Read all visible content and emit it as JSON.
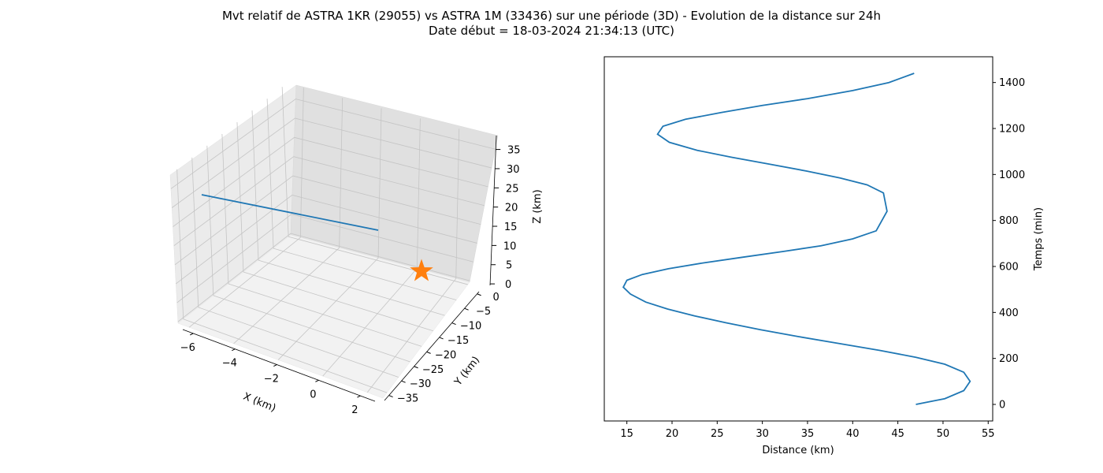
{
  "figure": {
    "title_line1": "Mvt relatif de ASTRA 1KR (29055) vs ASTRA 1M (33436) sur une période (3D) - Evolution de la distance sur 24h",
    "title_line2": "Date début = 18-03-2024 21:34:13 (UTC)"
  },
  "chart_data": [
    {
      "type": "line3d",
      "xlabel": "X (km)",
      "ylabel": "Y (km)",
      "zlabel": "Z (km)",
      "x_ticks": [
        -6,
        -4,
        -2,
        0,
        2
      ],
      "y_ticks": [
        0,
        -5,
        -10,
        -15,
        -20,
        -25,
        -30,
        -35
      ],
      "z_ticks": [
        0,
        5,
        10,
        15,
        20,
        25,
        30,
        35
      ],
      "series": [
        {
          "style": "line",
          "color": "#1f77b4"
        },
        {
          "style": "star-marker",
          "color": "#ff7f0e"
        }
      ]
    },
    {
      "type": "line",
      "xlabel": "Distance (km)",
      "ylabel": "Temps (min)",
      "xlim": [
        12.5,
        55.5
      ],
      "ylim": [
        -72,
        1512
      ],
      "x_ticks": [
        15,
        20,
        25,
        30,
        35,
        40,
        45,
        50,
        55
      ],
      "y_ticks": [
        0,
        200,
        400,
        600,
        800,
        1000,
        1200,
        1400
      ],
      "yaxis_side": "right",
      "color": "#1f77b4",
      "x": [
        47.0,
        50.2,
        52.3,
        53.0,
        52.3,
        50.2,
        47.0,
        43.0,
        38.5,
        34.0,
        29.8,
        26.0,
        22.5,
        19.5,
        17.1,
        15.4,
        14.6,
        15.0,
        16.7,
        19.6,
        23.4,
        27.8,
        32.3,
        36.5,
        40.0,
        42.6,
        43.8,
        43.4,
        41.6,
        38.6,
        34.9,
        30.8,
        26.6,
        22.8,
        19.7,
        18.4,
        19.0,
        21.5,
        25.5,
        30.0,
        35.0,
        40.0,
        44.0,
        46.8
      ],
      "y": [
        0,
        25,
        60,
        100,
        140,
        175,
        205,
        235,
        265,
        295,
        325,
        355,
        385,
        415,
        445,
        480,
        510,
        540,
        565,
        590,
        615,
        640,
        665,
        690,
        720,
        755,
        840,
        920,
        955,
        985,
        1015,
        1045,
        1075,
        1105,
        1140,
        1175,
        1210,
        1240,
        1270,
        1300,
        1330,
        1365,
        1400,
        1440
      ]
    }
  ]
}
